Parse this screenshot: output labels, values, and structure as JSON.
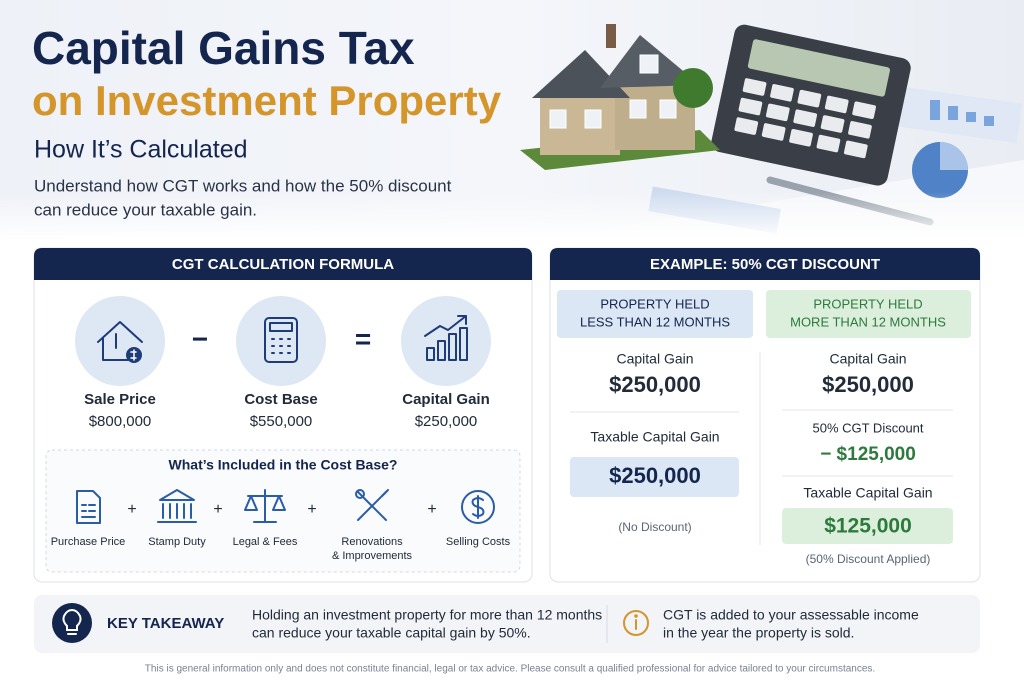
{
  "header": {
    "title_line1": "Capital Gains Tax",
    "title_line2": "on Investment Property",
    "subtitle": "How It’s Calculated",
    "description_lines": [
      "Understand how CGT works and how the 50% discount",
      "can reduce your taxable gain."
    ]
  },
  "formula": {
    "heading": "CGT CALCULATION FORMULA",
    "operators": [
      "−",
      "="
    ],
    "items": [
      {
        "label": "Sale Price",
        "value": "$800,000"
      },
      {
        "label": "Cost Base",
        "value": "$550,000"
      },
      {
        "label": "Capital Gain",
        "value": "$250,000"
      }
    ],
    "cost_base": {
      "heading": "What’s Included in the Cost Base?",
      "separator": "+",
      "items": [
        [
          "Purchase Price"
        ],
        [
          "Stamp Duty"
        ],
        [
          "Legal & Fees"
        ],
        [
          "Renovations",
          "& Improvements"
        ],
        [
          "Selling Costs"
        ]
      ]
    }
  },
  "example": {
    "heading": "EXAMPLE: 50% CGT DISCOUNT",
    "short_term": {
      "header_lines": [
        "PROPERTY HELD",
        "LESS THAN 12 MONTHS"
      ],
      "gain_label": "Capital Gain",
      "gain_value": "$250,000",
      "taxable_label": "Taxable Capital Gain",
      "taxable_value": "$250,000",
      "note": "(No Discount)"
    },
    "long_term": {
      "header_lines": [
        "PROPERTY HELD",
        "MORE THAN 12 MONTHS"
      ],
      "gain_label": "Capital Gain",
      "gain_value": "$250,000",
      "discount_label": "50% CGT Discount",
      "discount_value": "− $125,000",
      "taxable_label": "Taxable Capital Gain",
      "taxable_value": "$125,000",
      "note": "(50% Discount Applied)"
    }
  },
  "takeaway": {
    "label": "KEY TAKEAWAY",
    "text_lines": [
      "Holding an investment property for more than 12 months",
      "can reduce your taxable capital gain by 50%."
    ],
    "info_lines": [
      "CGT is added to your assessable income",
      "in the year the property is sold."
    ]
  },
  "footer": "This is general information only and does not constitute financial, legal or tax advice. Please consult a qualified professional for advice tailored to your circumstances."
}
